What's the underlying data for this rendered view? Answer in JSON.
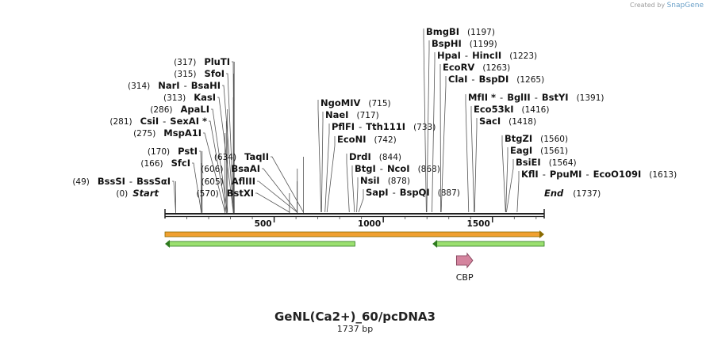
{
  "header": {
    "credit_prefix": "Created by",
    "credit_brand": "SnapGene"
  },
  "plasmid": {
    "name": "GeNL(Ca2+)_60/pcDNA3",
    "length_label": "1737 bp",
    "length": 1737
  },
  "ends": {
    "start": {
      "label": "Start",
      "pos_label": "(0)"
    },
    "end": {
      "label": "End",
      "pos_label": "(1737)"
    }
  },
  "scale": {
    "ticks": [
      500,
      1000,
      1500
    ],
    "tick_labels": [
      "500",
      "1000",
      "1500"
    ]
  },
  "sites": [
    {
      "pos": 49,
      "names": [
        "BssSI",
        "BssSαI"
      ],
      "pos_label": "(49)",
      "label_side": "left"
    },
    {
      "pos": 166,
      "names": [
        "SfcI"
      ],
      "pos_label": "(166)",
      "label_side": "left"
    },
    {
      "pos": 170,
      "names": [
        "PstI"
      ],
      "pos_label": "(170)",
      "label_side": "left"
    },
    {
      "pos": 275,
      "names": [
        "MspA1I"
      ],
      "pos_label": "(275)",
      "label_side": "left"
    },
    {
      "pos": 281,
      "names": [
        "CsiI",
        "SexAI *"
      ],
      "pos_label": "(281)",
      "label_side": "left"
    },
    {
      "pos": 286,
      "names": [
        "ApaLI"
      ],
      "pos_label": "(286)",
      "label_side": "left"
    },
    {
      "pos": 313,
      "names": [
        "KasI"
      ],
      "pos_label": "(313)",
      "label_side": "left"
    },
    {
      "pos": 314,
      "names": [
        "NarI",
        "BsaHI"
      ],
      "pos_label": "(314)",
      "label_side": "left"
    },
    {
      "pos": 315,
      "names": [
        "SfoI"
      ],
      "pos_label": "(315)",
      "label_side": "left"
    },
    {
      "pos": 317,
      "names": [
        "PluTI"
      ],
      "pos_label": "(317)",
      "label_side": "left"
    },
    {
      "pos": 570,
      "names": [
        "BstXI"
      ],
      "pos_label": "(570)",
      "label_side": "left"
    },
    {
      "pos": 605,
      "names": [
        "AflIII"
      ],
      "pos_label": "(605)",
      "label_side": "left"
    },
    {
      "pos": 606,
      "names": [
        "BsaAI"
      ],
      "pos_label": "(606)",
      "label_side": "left"
    },
    {
      "pos": 634,
      "names": [
        "TaqII"
      ],
      "pos_label": "(634)",
      "label_side": "left"
    },
    {
      "pos": 715,
      "names": [
        "NgoMIV"
      ],
      "pos_label": "(715)",
      "label_side": "right"
    },
    {
      "pos": 717,
      "names": [
        "NaeI"
      ],
      "pos_label": "(717)",
      "label_side": "right"
    },
    {
      "pos": 733,
      "names": [
        "PflFI",
        "Tth111I"
      ],
      "pos_label": "(733)",
      "label_side": "right"
    },
    {
      "pos": 742,
      "names": [
        "EcoNI"
      ],
      "pos_label": "(742)",
      "label_side": "right"
    },
    {
      "pos": 844,
      "names": [
        "DrdI"
      ],
      "pos_label": "(844)",
      "label_side": "right"
    },
    {
      "pos": 868,
      "names": [
        "BtgI",
        "NcoI"
      ],
      "pos_label": "(868)",
      "label_side": "right"
    },
    {
      "pos": 878,
      "names": [
        "NsiI"
      ],
      "pos_label": "(878)",
      "label_side": "right"
    },
    {
      "pos": 887,
      "names": [
        "SapI",
        "BspQI"
      ],
      "pos_label": "(887)",
      "label_side": "right"
    },
    {
      "pos": 1197,
      "names": [
        "BmgBI"
      ],
      "pos_label": "(1197)",
      "label_side": "right"
    },
    {
      "pos": 1199,
      "names": [
        "BspHI"
      ],
      "pos_label": "(1199)",
      "label_side": "right"
    },
    {
      "pos": 1223,
      "names": [
        "HpaI",
        "HincII"
      ],
      "pos_label": "(1223)",
      "label_side": "right"
    },
    {
      "pos": 1263,
      "names": [
        "EcoRV"
      ],
      "pos_label": "(1263)",
      "label_side": "right"
    },
    {
      "pos": 1265,
      "names": [
        "ClaI",
        "BspDI"
      ],
      "pos_label": "(1265)",
      "label_side": "right"
    },
    {
      "pos": 1391,
      "names": [
        "MfII *",
        "BglII",
        "BstYI"
      ],
      "pos_label": "(1391)",
      "label_side": "right"
    },
    {
      "pos": 1416,
      "names": [
        "Eco53kI"
      ],
      "pos_label": "(1416)",
      "label_side": "right"
    },
    {
      "pos": 1418,
      "names": [
        "SacI"
      ],
      "pos_label": "(1418)",
      "label_side": "right"
    },
    {
      "pos": 1560,
      "names": [
        "BtgZI"
      ],
      "pos_label": "(1560)",
      "label_side": "right"
    },
    {
      "pos": 1561,
      "names": [
        "EagI"
      ],
      "pos_label": "(1561)",
      "label_side": "right"
    },
    {
      "pos": 1564,
      "names": [
        "BsiEI"
      ],
      "pos_label": "(1564)",
      "label_side": "right"
    },
    {
      "pos": 1613,
      "names": [
        "KflI",
        "PpuMI",
        "EcoO109I"
      ],
      "pos_label": "(1613)",
      "label_side": "right"
    }
  ],
  "features": [
    {
      "name": "orange-feature",
      "type": "bar-forward",
      "start": 0,
      "end": 1737,
      "color": "#f0a030",
      "outline": "#8a6a00"
    },
    {
      "name": "green-feature-left",
      "type": "bar-reverse",
      "start": 0,
      "end": 870,
      "color": "#9be070",
      "outline": "#2e7a1f"
    },
    {
      "name": "green-feature-right",
      "type": "bar-reverse",
      "start": 1225,
      "end": 1737,
      "color": "#9be070",
      "outline": "#2e7a1f"
    },
    {
      "name": "CBP",
      "label": "CBP",
      "type": "arrow-forward",
      "start": 1335,
      "end": 1410,
      "color": "#d4849e",
      "outline": "#7a3a52"
    }
  ],
  "colors": {
    "backbone": "#222222",
    "tick": "#444444",
    "site_line": "#555555"
  }
}
